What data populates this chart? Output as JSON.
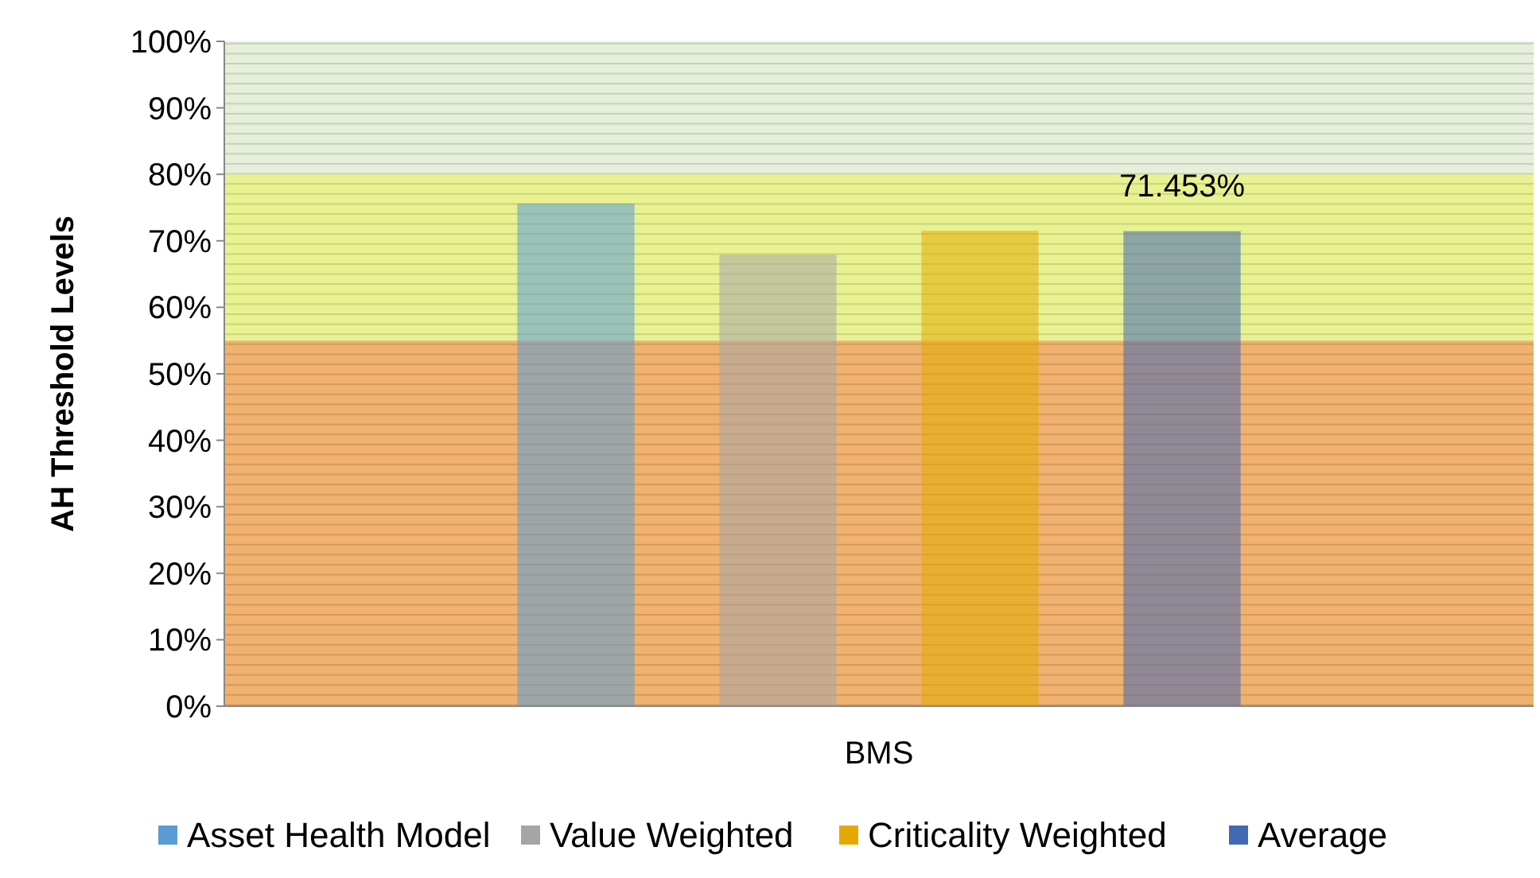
{
  "chart_data": {
    "type": "bar",
    "ylabel": "AH Threshold Levels",
    "categories": [
      "BMS"
    ],
    "series": [
      {
        "name": "Asset Health Model",
        "color": "#5b9bd5",
        "values": [
          75.6
        ]
      },
      {
        "name": "Value Weighted",
        "color": "#a5a5a5",
        "values": [
          67.9
        ]
      },
      {
        "name": "Criticality Weighted",
        "color": "#e4a900",
        "values": [
          71.5
        ]
      },
      {
        "name": "Average",
        "color": "#4268b4",
        "values": [
          71.453
        ],
        "value_labels": [
          "71.453%"
        ]
      }
    ],
    "ylim": [
      0,
      100
    ],
    "yticks": [
      {
        "value": 0,
        "label": "0%"
      },
      {
        "value": 10,
        "label": "10%"
      },
      {
        "value": 20,
        "label": "20%"
      },
      {
        "value": 30,
        "label": "30%"
      },
      {
        "value": 40,
        "label": "40%"
      },
      {
        "value": 50,
        "label": "50%"
      },
      {
        "value": 60,
        "label": "60%"
      },
      {
        "value": 70,
        "label": "70%"
      },
      {
        "value": 80,
        "label": "80%"
      },
      {
        "value": 90,
        "label": "90%"
      },
      {
        "value": 100,
        "label": "100%"
      }
    ],
    "bands": [
      {
        "axis": "y",
        "from": 0,
        "to": 55,
        "color": "#f0b26e"
      },
      {
        "axis": "y",
        "from": 55,
        "to": 80,
        "color": "#e9f291"
      },
      {
        "axis": "y",
        "from": 80,
        "to": 100,
        "color": "#e5efd9"
      }
    ],
    "legend": "bottom",
    "grid": false
  }
}
